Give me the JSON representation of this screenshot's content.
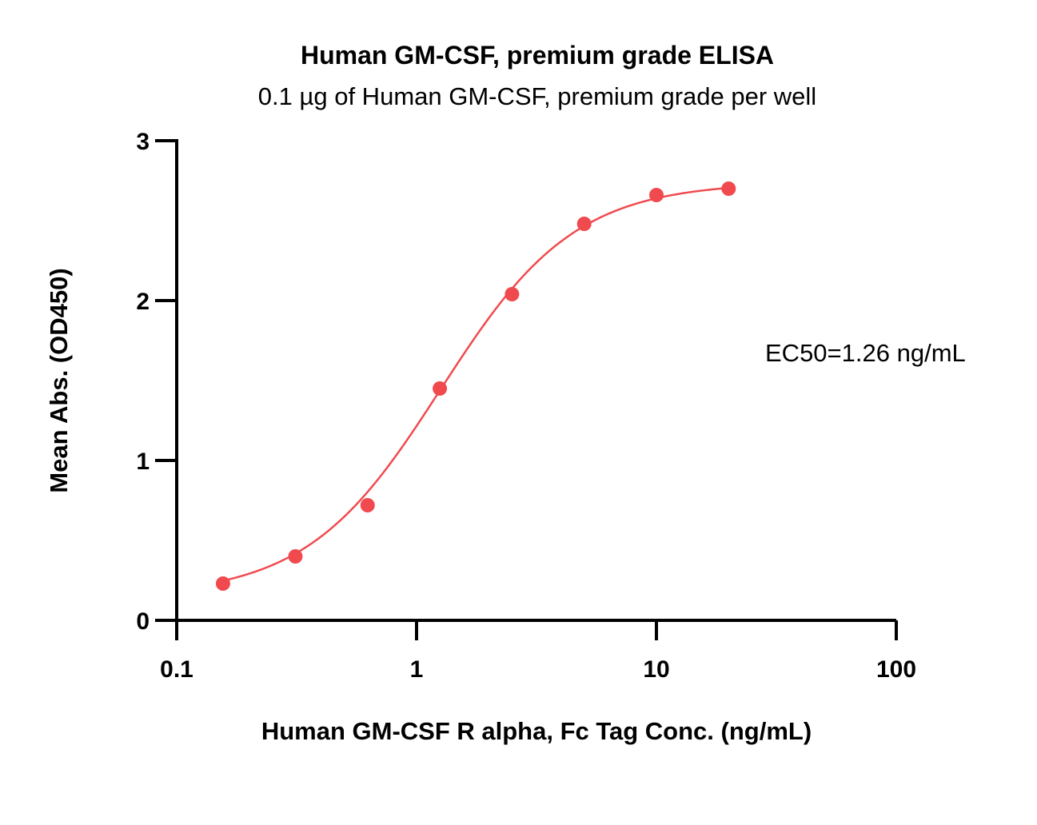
{
  "chart_data": {
    "type": "scatter",
    "title": "Human GM-CSF, premium grade ELISA",
    "subtitle": "0.1 µg of Human GM-CSF, premium grade per well",
    "xlabel": "Human GM-CSF R alpha, Fc Tag Conc. (ng/mL)",
    "ylabel": "Mean Abs. (OD450)",
    "x_scale": "log",
    "xlim": [
      0.1,
      100
    ],
    "ylim": [
      0,
      3
    ],
    "x_ticks": [
      "0.1",
      "1",
      "10",
      "100"
    ],
    "y_ticks": [
      "0",
      "1",
      "2",
      "3"
    ],
    "x_tick_values": [
      0.1,
      1,
      10,
      100
    ],
    "y_tick_values": [
      0,
      1,
      2,
      3
    ],
    "grid": false,
    "annotation": "EC50=1.26 ng/mL",
    "series": [
      {
        "color": "#f04a4e",
        "x": [
          0.156,
          0.3125,
          0.625,
          1.25,
          2.5,
          5,
          10,
          20
        ],
        "y": [
          0.23,
          0.4,
          0.72,
          1.45,
          2.04,
          2.48,
          2.66,
          2.7
        ]
      }
    ],
    "fit_curve": {
      "color": "#f04a4e",
      "model": "4PL",
      "bottom": 0.15,
      "top": 2.74,
      "ec50": 1.26,
      "hill": 1.55
    }
  }
}
